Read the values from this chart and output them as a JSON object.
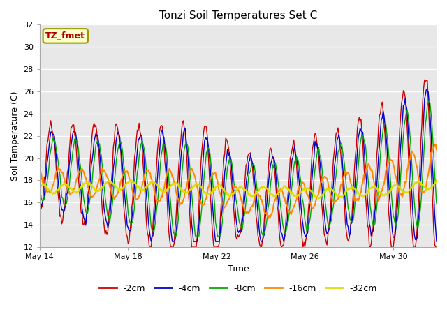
{
  "title": "Tonzi Soil Temperatures Set C",
  "xlabel": "Time",
  "ylabel": "Soil Temperature (C)",
  "ylim": [
    12,
    32
  ],
  "yticks": [
    12,
    14,
    16,
    18,
    20,
    22,
    24,
    26,
    28,
    30,
    32
  ],
  "colors": {
    "-2cm": "#cc0000",
    "-4cm": "#0000cc",
    "-8cm": "#00aa00",
    "-16cm": "#ff8800",
    "-32cm": "#dddd00"
  },
  "legend_labels": [
    "-2cm",
    "-4cm",
    "-8cm",
    "-16cm",
    "-32cm"
  ],
  "bg_color": "#ffffff",
  "plot_bg_color": "#e8e8e8",
  "annotation_text": "TZ_fmet",
  "annotation_bg": "#ffffcc",
  "annotation_border": "#999900",
  "annotation_text_color": "#aa0000",
  "x_tick_labels": [
    "May 14",
    "May 18",
    "May 22",
    "May 26",
    "May 30"
  ],
  "x_tick_positions": [
    0,
    96,
    192,
    288,
    384
  ],
  "total_points": 432
}
